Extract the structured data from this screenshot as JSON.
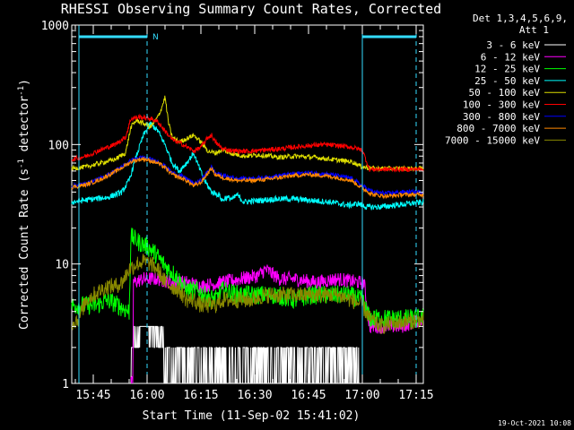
{
  "chart_data": {
    "type": "line",
    "title": "RHESSI Observing Summary Count Rates, Corrected",
    "xlabel": "Start Time (11-Sep-02 15:41:02)",
    "ylabel_main": "Corrected Count Rate (s",
    "ylabel_sup1": "-1",
    "ylabel_mid": " detector",
    "ylabel_sup2": "-1",
    "ylabel_end": ")",
    "y_scale": "log",
    "ylim": [
      1,
      1000
    ],
    "xlim_minutes": [
      -2,
      96
    ],
    "x_ticks": [
      {
        "m": 4,
        "label": "15:45"
      },
      {
        "m": 19,
        "label": "16:00"
      },
      {
        "m": 34,
        "label": "16:15"
      },
      {
        "m": 49,
        "label": "16:30"
      },
      {
        "m": 64,
        "label": "16:45"
      },
      {
        "m": 79,
        "label": "17:00"
      },
      {
        "m": 94,
        "label": "17:15"
      }
    ],
    "y_ticks": [
      {
        "v": 1,
        "label": "1"
      },
      {
        "v": 10,
        "label": "10"
      },
      {
        "v": 100,
        "label": "100"
      },
      {
        "v": 1000,
        "label": "1000"
      }
    ],
    "legend_header": "Det 1,3,4,5,6,9,",
    "legend_att": "Att 1",
    "markers": {
      "solid": [
        0,
        79
      ],
      "dashed": [
        19,
        94
      ],
      "night_label": "N",
      "segments": [
        [
          0,
          19
        ],
        [
          79,
          94
        ]
      ]
    },
    "annotation_date": "19-Oct-2021 10:08",
    "series": [
      {
        "name": "3 - 6 keV",
        "color": "#ffffff",
        "points": [
          [
            14.5,
            1
          ],
          [
            15,
            2
          ],
          [
            17,
            3
          ],
          [
            19,
            3
          ],
          [
            21,
            2
          ],
          [
            23,
            2.5
          ],
          [
            24.5,
            1.5
          ],
          [
            25,
            1.5
          ],
          [
            30,
            1.5
          ],
          [
            40,
            1.5
          ],
          [
            50,
            1.5
          ],
          [
            60,
            1.5
          ],
          [
            70,
            1.5
          ],
          [
            77,
            1.5
          ],
          [
            78,
            1
          ]
        ]
      },
      {
        "name": "6 - 12 keV",
        "color": "#ff00ff",
        "points": [
          [
            14.5,
            1
          ],
          [
            15,
            1
          ],
          [
            15.2,
            7
          ],
          [
            18,
            7.5
          ],
          [
            22,
            7.5
          ],
          [
            26,
            7
          ],
          [
            30,
            7
          ],
          [
            34,
            6.5
          ],
          [
            40,
            7
          ],
          [
            45,
            7.5
          ],
          [
            50,
            8
          ],
          [
            52,
            9
          ],
          [
            56,
            7.5
          ],
          [
            60,
            7.5
          ],
          [
            66,
            7
          ],
          [
            72,
            7.5
          ],
          [
            78,
            7
          ],
          [
            79.5,
            7
          ],
          [
            81,
            3
          ],
          [
            84,
            3
          ],
          [
            90,
            3
          ],
          [
            96,
            3.5
          ]
        ]
      },
      {
        "name": "12 - 25 keV",
        "color": "#00ff00",
        "points": [
          [
            -2,
            4.5
          ],
          [
            0,
            4.5
          ],
          [
            2,
            4.5
          ],
          [
            5,
            4.5
          ],
          [
            8,
            5
          ],
          [
            11,
            4.5
          ],
          [
            14,
            4
          ],
          [
            14.5,
            17
          ],
          [
            17,
            15
          ],
          [
            19,
            14
          ],
          [
            21,
            12.5
          ],
          [
            23,
            10.5
          ],
          [
            25,
            9
          ],
          [
            27,
            8
          ],
          [
            30,
            6
          ],
          [
            33,
            6
          ],
          [
            35,
            5.5
          ],
          [
            38,
            5
          ],
          [
            40,
            6
          ],
          [
            45,
            5.5
          ],
          [
            50,
            5.5
          ],
          [
            55,
            5.5
          ],
          [
            60,
            5
          ],
          [
            65,
            5.5
          ],
          [
            70,
            5.5
          ],
          [
            75,
            5.5
          ],
          [
            79,
            5
          ],
          [
            81,
            3.5
          ],
          [
            86,
            3.5
          ],
          [
            92,
            3.5
          ],
          [
            96,
            3.5
          ]
        ]
      },
      {
        "name": "25 - 50 keV",
        "color": "#00ffff",
        "points": [
          [
            -2,
            33
          ],
          [
            4,
            35
          ],
          [
            8,
            36
          ],
          [
            12,
            40
          ],
          [
            14,
            50
          ],
          [
            16,
            80
          ],
          [
            18,
            120
          ],
          [
            20,
            150
          ],
          [
            22,
            130
          ],
          [
            24,
            100
          ],
          [
            26,
            70
          ],
          [
            28,
            60
          ],
          [
            30,
            70
          ],
          [
            32,
            85
          ],
          [
            33,
            70
          ],
          [
            35,
            50
          ],
          [
            37,
            40
          ],
          [
            39,
            38
          ],
          [
            40,
            34
          ],
          [
            41,
            36
          ],
          [
            43,
            35
          ],
          [
            44,
            38
          ],
          [
            46,
            33
          ],
          [
            50,
            34
          ],
          [
            55,
            35
          ],
          [
            60,
            35
          ],
          [
            65,
            34
          ],
          [
            70,
            33
          ],
          [
            75,
            31
          ],
          [
            78,
            32
          ],
          [
            80,
            30
          ],
          [
            84,
            30
          ],
          [
            88,
            31
          ],
          [
            92,
            32
          ],
          [
            96,
            33
          ]
        ]
      },
      {
        "name": "50 - 100 keV",
        "color": "#dddd00",
        "points": [
          [
            -2,
            63
          ],
          [
            2,
            65
          ],
          [
            6,
            70
          ],
          [
            10,
            75
          ],
          [
            13,
            85
          ],
          [
            14.5,
            140
          ],
          [
            16,
            160
          ],
          [
            18,
            150
          ],
          [
            20,
            140
          ],
          [
            22,
            170
          ],
          [
            23,
            200
          ],
          [
            24,
            250
          ],
          [
            25,
            150
          ],
          [
            26,
            115
          ],
          [
            28,
            105
          ],
          [
            30,
            112
          ],
          [
            32,
            120
          ],
          [
            34,
            105
          ],
          [
            36,
            88
          ],
          [
            38,
            85
          ],
          [
            40,
            90
          ],
          [
            42,
            85
          ],
          [
            46,
            80
          ],
          [
            50,
            82
          ],
          [
            56,
            78
          ],
          [
            60,
            80
          ],
          [
            66,
            78
          ],
          [
            72,
            74
          ],
          [
            76,
            72
          ],
          [
            79,
            65
          ],
          [
            82,
            63
          ],
          [
            86,
            63
          ],
          [
            90,
            63
          ],
          [
            94,
            63
          ],
          [
            96,
            63
          ]
        ]
      },
      {
        "name": "100 - 300 keV",
        "color": "#ff0000",
        "points": [
          [
            -2,
            75
          ],
          [
            2,
            80
          ],
          [
            6,
            90
          ],
          [
            10,
            100
          ],
          [
            13,
            115
          ],
          [
            14.5,
            165
          ],
          [
            17,
            170
          ],
          [
            20,
            165
          ],
          [
            22,
            155
          ],
          [
            24,
            130
          ],
          [
            26,
            110
          ],
          [
            29,
            100
          ],
          [
            32,
            88
          ],
          [
            34,
            95
          ],
          [
            36,
            115
          ],
          [
            37,
            120
          ],
          [
            38,
            105
          ],
          [
            40,
            92
          ],
          [
            44,
            88
          ],
          [
            48,
            88
          ],
          [
            52,
            90
          ],
          [
            56,
            92
          ],
          [
            60,
            95
          ],
          [
            64,
            98
          ],
          [
            68,
            100
          ],
          [
            72,
            98
          ],
          [
            76,
            95
          ],
          [
            79,
            90
          ],
          [
            81,
            62
          ],
          [
            85,
            62
          ],
          [
            90,
            62
          ],
          [
            96,
            62
          ]
        ]
      },
      {
        "name": "300 - 800 keV",
        "color": "#0000ff",
        "points": [
          [
            -2,
            45
          ],
          [
            2,
            47
          ],
          [
            6,
            52
          ],
          [
            10,
            60
          ],
          [
            13,
            68
          ],
          [
            15,
            75
          ],
          [
            18,
            78
          ],
          [
            20,
            75
          ],
          [
            22,
            72
          ],
          [
            24,
            66
          ],
          [
            26,
            58
          ],
          [
            28,
            55
          ],
          [
            30,
            52
          ],
          [
            32,
            47
          ],
          [
            34,
            50
          ],
          [
            36,
            60
          ],
          [
            37,
            65
          ],
          [
            38,
            58
          ],
          [
            40,
            55
          ],
          [
            44,
            52
          ],
          [
            48,
            52
          ],
          [
            52,
            53
          ],
          [
            56,
            55
          ],
          [
            60,
            57
          ],
          [
            64,
            58
          ],
          [
            68,
            57
          ],
          [
            72,
            55
          ],
          [
            76,
            52
          ],
          [
            79,
            45
          ],
          [
            82,
            40
          ],
          [
            86,
            39
          ],
          [
            90,
            40
          ],
          [
            96,
            40
          ]
        ]
      },
      {
        "name": "800 - 7000 keV",
        "color": "#ff8800",
        "points": [
          [
            -2,
            44
          ],
          [
            2,
            46
          ],
          [
            6,
            51
          ],
          [
            10,
            59
          ],
          [
            13,
            67
          ],
          [
            15,
            73
          ],
          [
            18,
            76
          ],
          [
            20,
            73
          ],
          [
            22,
            70
          ],
          [
            24,
            64
          ],
          [
            26,
            56
          ],
          [
            28,
            53
          ],
          [
            30,
            50
          ],
          [
            32,
            45
          ],
          [
            34,
            48
          ],
          [
            36,
            58
          ],
          [
            37,
            63
          ],
          [
            38,
            56
          ],
          [
            40,
            53
          ],
          [
            44,
            50
          ],
          [
            48,
            50
          ],
          [
            52,
            51
          ],
          [
            56,
            53
          ],
          [
            60,
            55
          ],
          [
            64,
            56
          ],
          [
            68,
            55
          ],
          [
            72,
            53
          ],
          [
            76,
            50
          ],
          [
            79,
            43
          ],
          [
            82,
            38
          ],
          [
            86,
            37
          ],
          [
            90,
            38
          ],
          [
            96,
            38
          ]
        ]
      },
      {
        "name": "7000 - 15000 keV",
        "color": "#888800",
        "points": [
          [
            -2,
            3.2
          ],
          [
            0,
            3.5
          ],
          [
            2,
            5
          ],
          [
            4,
            5.5
          ],
          [
            6,
            6
          ],
          [
            8,
            6.5
          ],
          [
            10,
            6.5
          ],
          [
            12,
            7
          ],
          [
            14,
            9
          ],
          [
            16,
            10
          ],
          [
            18,
            10.5
          ],
          [
            20,
            10
          ],
          [
            22,
            9
          ],
          [
            24,
            7
          ],
          [
            26,
            6.5
          ],
          [
            28,
            6
          ],
          [
            30,
            5
          ],
          [
            32,
            5
          ],
          [
            34,
            4.5
          ],
          [
            36,
            4.5
          ],
          [
            38,
            4.5
          ],
          [
            40,
            5
          ],
          [
            44,
            5
          ],
          [
            48,
            5
          ],
          [
            52,
            5.5
          ],
          [
            56,
            5.5
          ],
          [
            60,
            5.5
          ],
          [
            64,
            5.5
          ],
          [
            68,
            5.5
          ],
          [
            72,
            5.5
          ],
          [
            76,
            5
          ],
          [
            79,
            4.5
          ],
          [
            81,
            3.5
          ],
          [
            84,
            3
          ],
          [
            88,
            3.2
          ],
          [
            92,
            3.3
          ],
          [
            96,
            3.4
          ]
        ]
      }
    ]
  }
}
